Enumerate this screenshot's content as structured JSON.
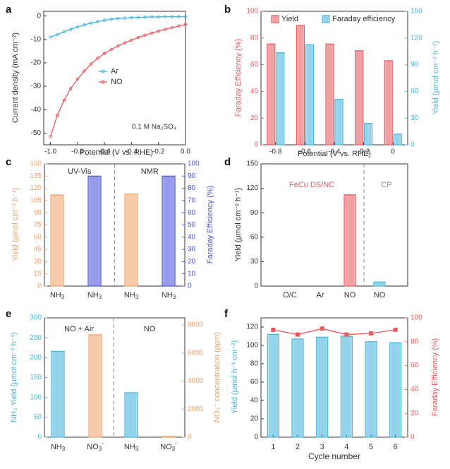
{
  "figure_title": "FeCu DS/NC electrochemical NO reduction figure",
  "colors": {
    "red": "#e8595e",
    "red_fill": "#f2a3a5",
    "blue": "#45b5dc",
    "blue_fill": "#a9def0",
    "orange": "#f1a26a",
    "orange_fill": "#f7cfae",
    "purple": "#4a54d8",
    "purple_fill": "#9aa3ee",
    "axis": "#333333",
    "gray": "#888888"
  },
  "chart_data": [
    {
      "id": "a",
      "panel_label": "a",
      "type": "line",
      "xlabel": "Potential (V  vs. RHE)",
      "ylabel": "Current density (mA cm⁻²)",
      "xlim": [
        -1.05,
        0.0
      ],
      "ylim": [
        -55,
        2
      ],
      "xticks": [
        -1.0,
        -0.8,
        -0.6,
        -0.4,
        -0.2,
        0.0
      ],
      "xtick_labels": [
        "-1.0",
        "-0.8",
        "-0.6",
        "-0.4",
        "-0.2",
        "0.0"
      ],
      "yticks": [
        0,
        -10,
        -20,
        -30,
        -40,
        -50
      ],
      "ytick_labels": [
        "0",
        "-10",
        "-20",
        "-30",
        "-40",
        "-50"
      ],
      "legend": [
        "Ar",
        "NO"
      ],
      "legend_position": "center-right",
      "annotation": "0.1 M Na₂SO₄",
      "series": [
        {
          "name": "Ar",
          "color": "#45b5dc",
          "x": [
            -1.0,
            -0.95,
            -0.9,
            -0.85,
            -0.8,
            -0.75,
            -0.7,
            -0.65,
            -0.6,
            -0.55,
            -0.5,
            -0.45,
            -0.4,
            -0.35,
            -0.3,
            -0.25,
            -0.2,
            -0.15,
            -0.1,
            -0.05,
            0.0
          ],
          "y": [
            -9.0,
            -7.9,
            -6.8,
            -5.7,
            -4.7,
            -3.8,
            -3.0,
            -2.4,
            -1.8,
            -1.4,
            -1.1,
            -0.9,
            -0.7,
            -0.6,
            -0.5,
            -0.4,
            -0.4,
            -0.3,
            -0.3,
            -0.3,
            -0.3
          ]
        },
        {
          "name": "NO",
          "color": "#e8595e",
          "x": [
            -1.0,
            -0.95,
            -0.9,
            -0.85,
            -0.8,
            -0.75,
            -0.7,
            -0.65,
            -0.6,
            -0.55,
            -0.5,
            -0.45,
            -0.4,
            -0.35,
            -0.3,
            -0.25,
            -0.2,
            -0.15,
            -0.1,
            -0.05,
            0.0
          ],
          "y": [
            -51.5,
            -42.5,
            -36.0,
            -31.0,
            -27.0,
            -23.5,
            -20.5,
            -18.0,
            -16.0,
            -14.3,
            -12.8,
            -11.5,
            -10.3,
            -9.2,
            -8.2,
            -7.3,
            -6.5,
            -5.7,
            -5.0,
            -4.3,
            -3.6
          ]
        }
      ]
    },
    {
      "id": "b",
      "panel_label": "b",
      "type": "bar",
      "xlabel": "Potential (V  vs. RHE)",
      "ylabel": "Faraday Efficiency (%)",
      "ylabel_right": "Yield (μmol cm⁻² h⁻¹)",
      "categories": [
        "-0.8",
        "-0.6",
        "-0.4",
        "-0.2",
        "0"
      ],
      "ylim": [
        0,
        100
      ],
      "ylim_right": [
        0,
        150
      ],
      "yticks": [
        0,
        20,
        40,
        60,
        80,
        100
      ],
      "yticks_right": [
        0,
        30,
        60,
        90,
        120,
        150
      ],
      "legend": [
        "Yield",
        "Faraday efficiency"
      ],
      "legend_position": "top",
      "series": [
        {
          "name": "Yield",
          "axis": "left",
          "color": "#e8595e",
          "values": [
            75.5,
            89.5,
            75.5,
            70.5,
            63
          ]
        },
        {
          "name": "Faraday efficiency",
          "axis": "right",
          "color": "#45b5dc",
          "values": [
            103.5,
            112.5,
            51,
            24,
            12
          ]
        }
      ]
    },
    {
      "id": "c",
      "panel_label": "c",
      "type": "bar",
      "ylabel": "Yield (μmol cm⁻² h⁻¹)",
      "ylabel_right": "Faraday Efficiency (%)",
      "categories": [
        "NH3",
        "NH3",
        "NH3",
        "NH3"
      ],
      "ylim": [
        0,
        150
      ],
      "ylim_right": [
        0,
        100
      ],
      "yticks": [
        0,
        15,
        30,
        45,
        60,
        75,
        90,
        105,
        120,
        135,
        150
      ],
      "yticks_right": [
        0,
        10,
        20,
        30,
        40,
        50,
        60,
        70,
        80,
        90,
        100
      ],
      "groups": [
        "UV-Vis",
        "NMR"
      ],
      "bars": [
        {
          "series": "Yield",
          "axis": "left",
          "color": "#f1a26a",
          "value": 112
        },
        {
          "series": "Faraday Efficiency",
          "axis": "right",
          "color": "#4a54d8",
          "value": 90
        },
        {
          "series": "Yield",
          "axis": "left",
          "color": "#f1a26a",
          "value": 113
        },
        {
          "series": "Faraday Efficiency",
          "axis": "right",
          "color": "#4a54d8",
          "value": 90
        }
      ]
    },
    {
      "id": "d",
      "panel_label": "d",
      "type": "bar",
      "ylabel": "Yield (μmol cm⁻² h⁻¹)",
      "categories": [
        "O/C",
        "Ar",
        "NO",
        "NO"
      ],
      "ylim": [
        0,
        150
      ],
      "yticks": [
        0,
        30,
        60,
        90,
        120,
        150
      ],
      "groups": [
        "FeCu DS/NC",
        "CP"
      ],
      "bars": [
        {
          "color": "#e8595e",
          "value": 0
        },
        {
          "color": "#e8595e",
          "value": 0
        },
        {
          "color": "#e8595e",
          "value": 112
        },
        {
          "color": "#45b5dc",
          "value": 5
        }
      ]
    },
    {
      "id": "e",
      "panel_label": "e",
      "type": "bar",
      "ylabel": "NH₃ Yield (μmol cm⁻² h⁻¹)",
      "ylabel_right": "NO₃⁻ concentration (ppm)",
      "categories": [
        "NH3",
        "NO3-",
        "NH3",
        "NO3-"
      ],
      "ylim": [
        0,
        300
      ],
      "ylim_right": [
        0,
        8500
      ],
      "yticks": [
        0,
        50,
        100,
        150,
        200,
        250,
        300
      ],
      "yticks_right": [
        0,
        2000,
        4000,
        6000,
        8000
      ],
      "groups": [
        "NO + Air",
        "NO"
      ],
      "bars": [
        {
          "axis": "left",
          "color": "#45b5dc",
          "value": 216
        },
        {
          "axis": "right",
          "color": "#f1a26a",
          "value": 7300
        },
        {
          "axis": "left",
          "color": "#45b5dc",
          "value": 112
        },
        {
          "axis": "right",
          "color": "#f1a26a",
          "value": 60
        }
      ]
    },
    {
      "id": "f",
      "panel_label": "f",
      "type": "bar",
      "xlabel": "Cycle number",
      "ylabel": "Yield (μmol h⁻¹ cm⁻²)",
      "ylabel_right": "Faraday Efficiency (%)",
      "categories": [
        "1",
        "2",
        "3",
        "4",
        "5",
        "6"
      ],
      "ylim": [
        0,
        130
      ],
      "ylim_right": [
        0,
        100
      ],
      "yticks": [
        0,
        20,
        40,
        60,
        80,
        100,
        120
      ],
      "yticks_right": [
        0,
        20,
        40,
        60,
        80,
        100
      ],
      "series": [
        {
          "name": "Yield",
          "kind": "bar",
          "axis": "left",
          "color": "#45b5dc",
          "values": [
            112,
            107,
            109,
            110,
            104,
            103
          ]
        },
        {
          "name": "Faraday Efficiency",
          "kind": "line",
          "axis": "right",
          "color": "#e8595e",
          "values": [
            90,
            86,
            91,
            86,
            87,
            90
          ]
        }
      ]
    }
  ]
}
